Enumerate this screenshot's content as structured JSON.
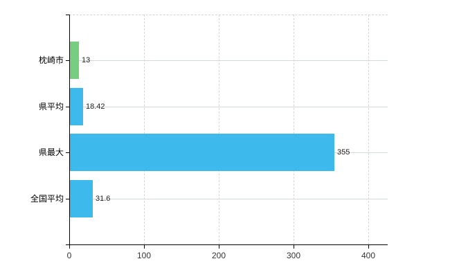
{
  "chart_data": {
    "type": "bar",
    "orientation": "horizontal",
    "title": "",
    "xlabel": "",
    "ylabel": "",
    "categories": [
      "枕崎市",
      "県平均",
      "県最大",
      "全国平均"
    ],
    "values": [
      13,
      18.42,
      355,
      31.6
    ],
    "value_labels": [
      "13",
      "18.42",
      "355",
      "31.6"
    ],
    "bar_colors": [
      "#77CE81",
      "#3EB9EB",
      "#3EB9EB",
      "#3EB9EB"
    ],
    "x_ticks": [
      0,
      100,
      200,
      300,
      400
    ],
    "x_tick_labels": [
      "0",
      "100",
      "200",
      "300",
      "400"
    ],
    "xlim": [
      0,
      426
    ],
    "grid": true,
    "legend": false
  },
  "colors": {
    "bar_green": "#77CE81",
    "bar_blue": "#3EB9EB",
    "axis": "#000000",
    "gridline_vertical": "#d9d2d9",
    "gridline_horizontal": "#d4dbd4",
    "value_label": "#222222",
    "tick_label": "#333333",
    "category_label": "#000000",
    "background": "#ffffff"
  }
}
